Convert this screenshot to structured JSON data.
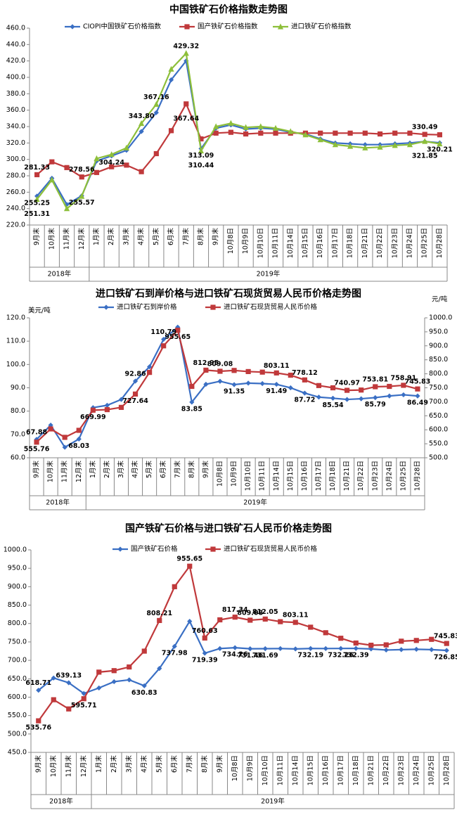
{
  "chart_data": [
    {
      "type": "line",
      "title": "中国铁矿石价格指数走势图",
      "categories": [
        "9月末",
        "10月末",
        "11月末",
        "12月末",
        "1月末",
        "2月末",
        "3月末",
        "4月末",
        "5月末",
        "6月末",
        "7月末",
        "8月末",
        "9月末",
        "10月8日",
        "10月9日",
        "10月10日",
        "10月11日",
        "10月14日",
        "10月15日",
        "10月16日",
        "10月17日",
        "10月18日",
        "10月21日",
        "10月22日",
        "10月23日",
        "10月24日",
        "10月25日",
        "10月28日"
      ],
      "year_groups": [
        {
          "label": "2018年",
          "count": 4
        },
        {
          "label": "2019年",
          "count": 24
        }
      ],
      "series": [
        {
          "name": "CIOPI中国铁矿石价格指数",
          "color": "#3a6fc4",
          "marker": "diamond",
          "values": [
            255.25,
            277,
            245,
            255.57,
            298,
            304.24,
            311,
            334,
            357,
            397,
            420,
            313.09,
            338,
            342,
            337,
            338,
            337,
            333,
            331,
            325,
            320,
            319,
            318,
            318,
            319,
            320,
            321.85,
            320.21
          ],
          "value_labels": [
            "255.25",
            null,
            null,
            "255.57",
            null,
            "304.24",
            null,
            null,
            null,
            null,
            null,
            "313.09",
            null,
            null,
            null,
            null,
            null,
            null,
            null,
            null,
            null,
            null,
            null,
            null,
            null,
            null,
            "321.85",
            "320.21"
          ]
        },
        {
          "name": "国产铁矿石价格指数",
          "color": "#c0393b",
          "marker": "square",
          "values": [
            281.33,
            297,
            290,
            278.56,
            284,
            291,
            293,
            285,
            307,
            335,
            367.64,
            325,
            332,
            333,
            331,
            332,
            332,
            332,
            332,
            332,
            332,
            332,
            332,
            331,
            332,
            332,
            330.49,
            330
          ],
          "value_labels": [
            "281.33",
            null,
            null,
            "278.56",
            null,
            null,
            null,
            null,
            null,
            null,
            "367.64",
            null,
            null,
            null,
            null,
            null,
            null,
            null,
            null,
            null,
            null,
            null,
            null,
            null,
            null,
            null,
            "330.49",
            null
          ]
        },
        {
          "name": "进口铁矿石价格指数",
          "color": "#8dbf3a",
          "marker": "triangle",
          "values": [
            251.31,
            275,
            240,
            255,
            301,
            306,
            314,
            343.8,
            367.16,
            410,
            429.32,
            310.44,
            340,
            344,
            339,
            340,
            338,
            334,
            330,
            324,
            318,
            316,
            314,
            315,
            317,
            318,
            322,
            319
          ],
          "value_labels": [
            "251.31",
            null,
            null,
            null,
            null,
            null,
            null,
            "343.80",
            "367.16",
            null,
            "429.32",
            "310.44",
            null,
            null,
            null,
            null,
            null,
            null,
            null,
            null,
            null,
            null,
            null,
            null,
            null,
            null,
            null,
            null
          ]
        }
      ],
      "ylim": [
        220,
        460
      ],
      "yticks": [
        {
          "value": 220,
          "label": "220.0"
        },
        {
          "value": 240,
          "label": "240.0"
        },
        {
          "value": 260,
          "label": "260.0"
        },
        {
          "value": 280,
          "label": "280.0"
        },
        {
          "value": 300,
          "label": "300.0"
        },
        {
          "value": 320,
          "label": "320.0"
        },
        {
          "value": 340,
          "label": "340.0"
        },
        {
          "value": 360,
          "label": "360.0"
        },
        {
          "value": 380,
          "label": "380.0"
        },
        {
          "value": 400,
          "label": "400.0"
        },
        {
          "value": 420,
          "label": "420.0"
        },
        {
          "value": 440,
          "label": "440.0"
        },
        {
          "value": 460,
          "label": "460.0"
        }
      ],
      "grid": false
    },
    {
      "type": "line",
      "title": "进口铁矿石到岸价格与进口铁矿石现货贸易人民币价格走势图",
      "ylabel": "美元/吨",
      "y2label": "元/吨",
      "categories": [
        "9月末",
        "10月末",
        "11月末",
        "12月末",
        "1月末",
        "2月末",
        "3月末",
        "4月末",
        "5月末",
        "6月末",
        "7月末",
        "8月末",
        "9月末",
        "10月8日",
        "10月9日",
        "10月10日",
        "10月11日",
        "10月14日",
        "10月15日",
        "10月16日",
        "10月17日",
        "10月18日",
        "10月21日",
        "10月22日",
        "10月23日",
        "10月24日",
        "10月25日",
        "10月28日"
      ],
      "year_groups": [
        {
          "label": "2018年",
          "count": 4
        },
        {
          "label": "2019年",
          "count": 24
        }
      ],
      "series": [
        {
          "name": "进口铁矿石到岸价格",
          "color": "#3a6fc4",
          "marker": "diamond",
          "values": [
            67.88,
            74,
            64.5,
            68.03,
            81.5,
            82.5,
            85,
            92.86,
            99,
            110.79,
            116,
            83.85,
            91.5,
            92.8,
            91.35,
            92,
            91.8,
            91.49,
            90,
            87.72,
            86,
            85.54,
            85,
            85.3,
            85.79,
            86.5,
            87,
            86.49
          ],
          "value_labels": [
            "67.88",
            null,
            null,
            "68.03",
            null,
            null,
            null,
            "92.86",
            null,
            "110.79",
            null,
            "83.85",
            null,
            null,
            "91.35",
            null,
            null,
            "91.49",
            null,
            "87.72",
            null,
            "85.54",
            null,
            null,
            "85.79",
            null,
            null,
            "86.49"
          ]
        },
        {
          "name": "进口铁矿石现货贸易人民币价格",
          "color": "#c0393b",
          "marker": "square",
          "axis": "y2",
          "values": [
            555.76,
            603,
            573,
            598,
            669.99,
            672,
            680,
            727.64,
            805,
            900,
            955.65,
            755,
            812.95,
            809.08,
            812,
            808,
            806,
            803.11,
            795,
            778.12,
            758,
            750,
            740.97,
            742,
            753.81,
            755,
            758.91,
            745.83
          ],
          "value_labels": [
            "555.76",
            null,
            null,
            null,
            "669.99",
            null,
            null,
            "727.64",
            null,
            null,
            "955.65",
            null,
            "812.95",
            "809.08",
            null,
            null,
            null,
            "803.11",
            null,
            "778.12",
            null,
            null,
            "740.97",
            null,
            "753.81",
            null,
            "758.91",
            "745.83"
          ]
        }
      ],
      "ylim": [
        60,
        120
      ],
      "yticks": [
        {
          "value": 60,
          "label": "60.0"
        },
        {
          "value": 70,
          "label": "70.0"
        },
        {
          "value": 80,
          "label": "80.0"
        },
        {
          "value": 90,
          "label": "90.0"
        },
        {
          "value": 100,
          "label": "100.0"
        },
        {
          "value": 110,
          "label": "110.0"
        },
        {
          "value": 120,
          "label": "120.0"
        }
      ],
      "y2lim": [
        500,
        1000
      ],
      "y2ticks": [
        {
          "value": 500,
          "label": "500.0"
        },
        {
          "value": 550,
          "label": "550.0"
        },
        {
          "value": 600,
          "label": "600.0"
        },
        {
          "value": 650,
          "label": "650.0"
        },
        {
          "value": 700,
          "label": "700.0"
        },
        {
          "value": 750,
          "label": "750.0"
        },
        {
          "value": 800,
          "label": "800.0"
        },
        {
          "value": 850,
          "label": "850.0"
        },
        {
          "value": 900,
          "label": "900.0"
        },
        {
          "value": 950,
          "label": "950.0"
        },
        {
          "value": 1000,
          "label": "1000.0"
        }
      ],
      "grid": false
    },
    {
      "type": "line",
      "title": "国产铁矿石价格与进口铁矿石人民币价格走势图",
      "categories": [
        "9月末",
        "10月末",
        "11月末",
        "12月末",
        "1月末",
        "2月末",
        "3月末",
        "4月末",
        "5月末",
        "6月末",
        "7月末",
        "8月末",
        "9月末",
        "10月8日",
        "10月9日",
        "10月10日",
        "10月11日",
        "10月14日",
        "10月15日",
        "10月16日",
        "10月17日",
        "10月18日",
        "10月21日",
        "10月22日",
        "10月23日",
        "10月24日",
        "10月25日",
        "10月28日"
      ],
      "year_groups": [
        {
          "label": "2018年",
          "count": 4
        },
        {
          "label": "2019年",
          "count": 24
        }
      ],
      "series": [
        {
          "name": "国产铁矿石价格",
          "color": "#3a6fc4",
          "marker": "diamond",
          "values": [
            618.71,
            652,
            639.13,
            610,
            625,
            642,
            647,
            630.83,
            678,
            737.98,
            806,
            719.39,
            732,
            734.26,
            731.46,
            731.69,
            732,
            731,
            732.19,
            732,
            732.26,
            732.39,
            731,
            728,
            729,
            730,
            729,
            726.85
          ],
          "value_labels": [
            "618.71",
            null,
            "639.13",
            null,
            null,
            null,
            null,
            "630.83",
            null,
            "737.98",
            null,
            "719.39",
            null,
            "734.26",
            "731.46",
            "731.69",
            null,
            null,
            "732.19",
            null,
            "732.26",
            "732.39",
            null,
            null,
            null,
            null,
            null,
            "726.85"
          ]
        },
        {
          "name": "进口铁矿石现货贸易人民币价格",
          "color": "#c0393b",
          "marker": "square",
          "values": [
            535.76,
            593,
            568,
            595.71,
            668,
            672,
            682,
            725,
            808.21,
            900,
            955.65,
            760.63,
            810,
            817.34,
            809.08,
            812.05,
            805,
            803.11,
            790,
            775,
            760,
            747,
            741,
            742,
            752,
            754,
            757,
            745.83
          ],
          "value_labels": [
            "535.76",
            null,
            null,
            "595.71",
            null,
            null,
            null,
            null,
            "808.21",
            null,
            "955.65",
            "760.63",
            null,
            "817.34",
            "809.08",
            "812.05",
            null,
            "803.11",
            null,
            null,
            null,
            null,
            null,
            null,
            null,
            null,
            null,
            "745.83"
          ]
        }
      ],
      "ylim": [
        450,
        1000
      ],
      "yticks": [
        {
          "value": 450,
          "label": "450.0"
        },
        {
          "value": 500,
          "label": "500.0"
        },
        {
          "value": 550,
          "label": "550.0"
        },
        {
          "value": 600,
          "label": "600.0"
        },
        {
          "value": 650,
          "label": "650.0"
        },
        {
          "value": 700,
          "label": "700.0"
        },
        {
          "value": 750,
          "label": "750.0"
        },
        {
          "value": 800,
          "label": "800.0"
        },
        {
          "value": 850,
          "label": "850.0"
        },
        {
          "value": 900,
          "label": "900.0"
        },
        {
          "value": 950,
          "label": "950.0"
        },
        {
          "value": 1000,
          "label": "1000.0"
        }
      ],
      "grid": false
    }
  ]
}
